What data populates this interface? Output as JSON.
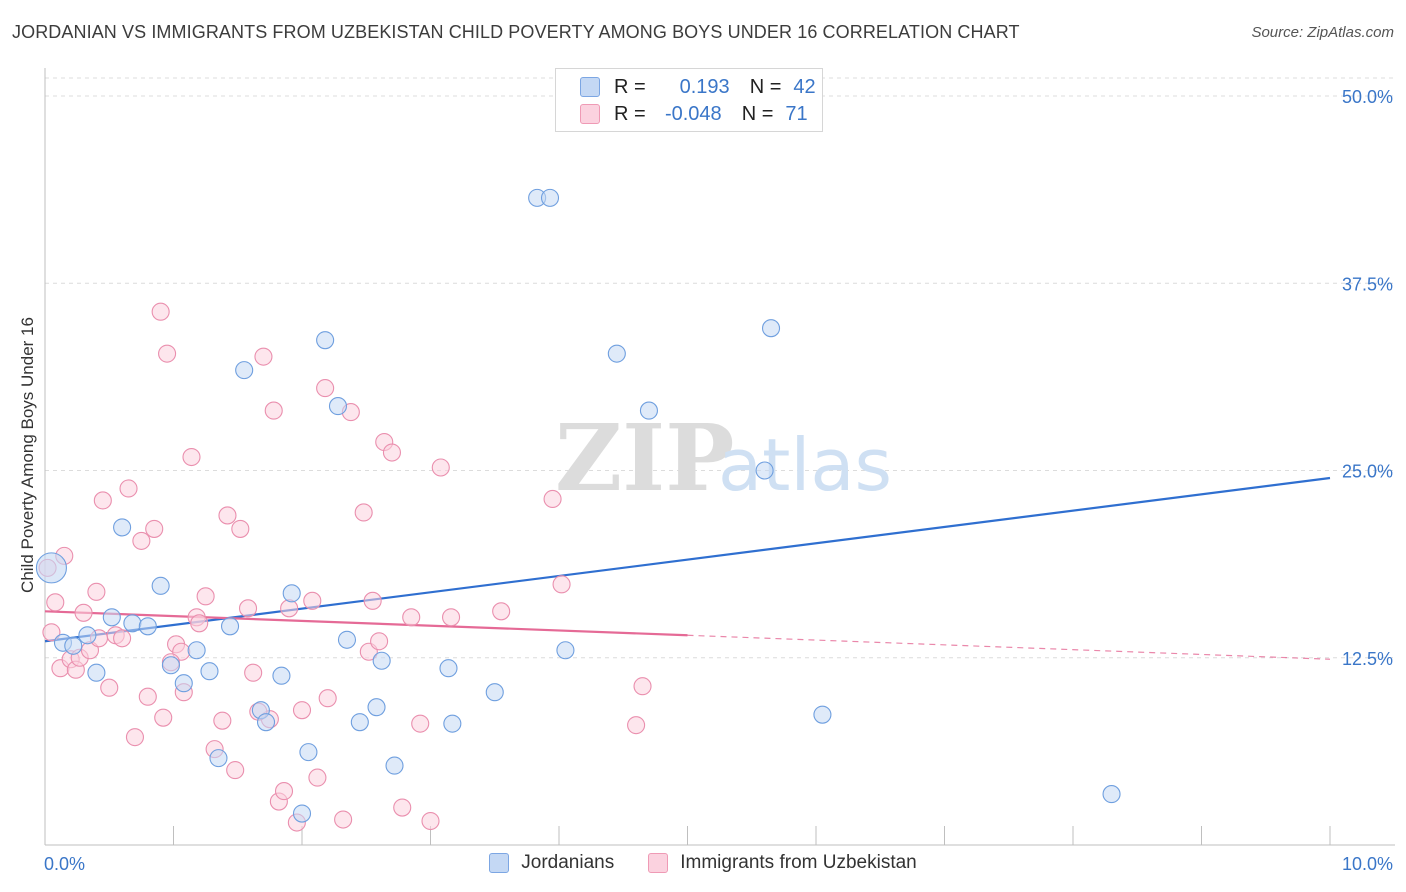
{
  "title": "JORDANIAN VS IMMIGRANTS FROM UZBEKISTAN CHILD POVERTY AMONG BOYS UNDER 16 CORRELATION CHART",
  "source": "Source: ZipAtlas.com",
  "colors": {
    "blue": "#3a76c8",
    "blue_fill": "#c4d8f4",
    "blue_line": "#2f6fd0",
    "pink": "#e56a96",
    "pink_fill": "#fbd2df",
    "tick_label": "#3a76c8",
    "grid": "#dcdcdc"
  },
  "legend": {
    "rows": [
      {
        "r_label": "R =",
        "r_value": "0.193",
        "n_label": "N =",
        "n_value": "42"
      },
      {
        "r_label": "R =",
        "r_value": "-0.048",
        "n_label": "N =",
        "n_value": "71"
      }
    ]
  },
  "bottom_legend": [
    "Jordanians",
    "Immigrants from Uzbekistan"
  ],
  "chart_data": {
    "type": "scatter",
    "title": "JORDANIAN VS IMMIGRANTS FROM UZBEKISTAN CHILD POVERTY AMONG BOYS UNDER 16 CORRELATION CHART",
    "xlabel": "",
    "ylabel": "Child Poverty Among Boys Under 16",
    "xlim": [
      0,
      10
    ],
    "ylim": [
      0,
      50
    ],
    "x_tick_labels": [
      "0.0%",
      "10.0%"
    ],
    "y_ticks": [
      12.5,
      25.0,
      37.5,
      50.0
    ],
    "y_tick_labels": [
      "12.5%",
      "25.0%",
      "37.5%",
      "50.0%"
    ],
    "grid": true,
    "watermark": {
      "zip": "ZIP",
      "atlas": "atlas"
    },
    "series": [
      {
        "name": "Jordanians",
        "color": "#3a76c8",
        "trend": {
          "x": [
            0,
            10
          ],
          "y": [
            13.6,
            24.5
          ]
        },
        "points": [
          [
            0.05,
            18.5
          ],
          [
            0.14,
            13.5
          ],
          [
            0.22,
            13.3
          ],
          [
            0.33,
            14.0
          ],
          [
            0.4,
            11.5
          ],
          [
            0.52,
            15.2
          ],
          [
            0.6,
            21.2
          ],
          [
            0.68,
            14.8
          ],
          [
            0.8,
            14.6
          ],
          [
            0.9,
            17.3
          ],
          [
            0.98,
            12.0
          ],
          [
            1.08,
            10.8
          ],
          [
            1.18,
            13.0
          ],
          [
            1.28,
            11.6
          ],
          [
            1.35,
            5.8
          ],
          [
            1.44,
            14.6
          ],
          [
            1.55,
            31.7
          ],
          [
            1.68,
            9.0
          ],
          [
            1.72,
            8.2
          ],
          [
            1.84,
            11.3
          ],
          [
            1.92,
            16.8
          ],
          [
            2.0,
            2.1
          ],
          [
            2.05,
            6.2
          ],
          [
            2.18,
            33.7
          ],
          [
            2.28,
            29.3
          ],
          [
            2.35,
            13.7
          ],
          [
            2.45,
            8.2
          ],
          [
            2.58,
            9.2
          ],
          [
            2.62,
            12.3
          ],
          [
            2.72,
            5.3
          ],
          [
            3.14,
            11.8
          ],
          [
            3.17,
            8.1
          ],
          [
            3.5,
            10.2
          ],
          [
            3.83,
            43.2
          ],
          [
            3.93,
            43.2
          ],
          [
            4.05,
            13.0
          ],
          [
            4.45,
            32.8
          ],
          [
            4.7,
            29.0
          ],
          [
            5.6,
            25.0
          ],
          [
            5.65,
            34.5
          ],
          [
            6.05,
            8.7
          ],
          [
            8.3,
            3.4
          ]
        ]
      },
      {
        "name": "Immigrants from Uzbekistan",
        "color": "#e56a96",
        "trend": {
          "x": [
            0,
            10
          ],
          "y": [
            15.6,
            12.4
          ]
        },
        "trend_solid_to_x": 5,
        "points": [
          [
            0.02,
            18.5
          ],
          [
            0.05,
            14.2
          ],
          [
            0.08,
            16.2
          ],
          [
            0.12,
            11.8
          ],
          [
            0.15,
            19.3
          ],
          [
            0.2,
            12.4
          ],
          [
            0.24,
            11.7
          ],
          [
            0.27,
            12.5
          ],
          [
            0.3,
            15.5
          ],
          [
            0.35,
            13.0
          ],
          [
            0.4,
            16.9
          ],
          [
            0.42,
            13.8
          ],
          [
            0.45,
            23.0
          ],
          [
            0.5,
            10.5
          ],
          [
            0.55,
            14.0
          ],
          [
            0.6,
            13.8
          ],
          [
            0.65,
            23.8
          ],
          [
            0.7,
            7.2
          ],
          [
            0.75,
            20.3
          ],
          [
            0.8,
            9.9
          ],
          [
            0.85,
            21.1
          ],
          [
            0.9,
            35.6
          ],
          [
            0.92,
            8.5
          ],
          [
            0.95,
            32.8
          ],
          [
            1.02,
            13.4
          ],
          [
            1.06,
            12.9
          ],
          [
            1.08,
            10.2
          ],
          [
            1.14,
            25.9
          ],
          [
            1.18,
            15.2
          ],
          [
            1.2,
            14.8
          ],
          [
            1.25,
            16.6
          ],
          [
            1.32,
            6.4
          ],
          [
            1.38,
            8.3
          ],
          [
            1.42,
            22.0
          ],
          [
            1.48,
            5.0
          ],
          [
            1.52,
            21.1
          ],
          [
            1.58,
            15.8
          ],
          [
            1.62,
            11.5
          ],
          [
            1.7,
            32.6
          ],
          [
            1.75,
            8.4
          ],
          [
            1.78,
            29.0
          ],
          [
            1.82,
            2.9
          ],
          [
            1.86,
            3.6
          ],
          [
            1.9,
            15.8
          ],
          [
            1.96,
            1.5
          ],
          [
            2.0,
            9.0
          ],
          [
            2.08,
            16.3
          ],
          [
            2.12,
            4.5
          ],
          [
            2.18,
            30.5
          ],
          [
            2.2,
            9.8
          ],
          [
            2.32,
            1.7
          ],
          [
            2.38,
            28.9
          ],
          [
            2.48,
            22.2
          ],
          [
            2.52,
            12.9
          ],
          [
            2.55,
            16.3
          ],
          [
            2.6,
            13.6
          ],
          [
            2.64,
            26.9
          ],
          [
            2.7,
            26.2
          ],
          [
            2.78,
            2.5
          ],
          [
            2.85,
            15.2
          ],
          [
            2.92,
            8.1
          ],
          [
            3.0,
            1.6
          ],
          [
            3.08,
            25.2
          ],
          [
            3.16,
            15.2
          ],
          [
            3.55,
            15.6
          ],
          [
            3.95,
            23.1
          ],
          [
            4.02,
            17.4
          ],
          [
            4.6,
            8.0
          ],
          [
            4.65,
            10.6
          ],
          [
            1.66,
            8.9
          ],
          [
            0.98,
            12.2
          ]
        ]
      }
    ]
  }
}
